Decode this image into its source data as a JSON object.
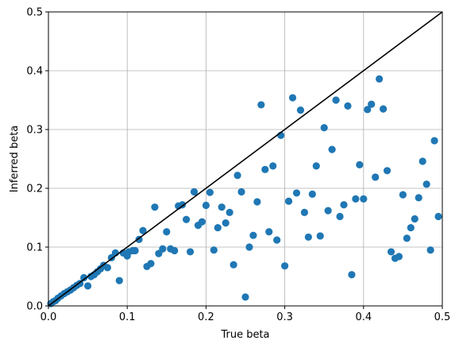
{
  "chart_data": {
    "type": "scatter",
    "title": "",
    "xlabel": "True beta",
    "ylabel": "Inferred beta",
    "xlim": [
      0,
      0.5
    ],
    "ylim": [
      0,
      0.5
    ],
    "grid": true,
    "xticks": [
      "0.0",
      "0.1",
      "0.2",
      "0.3",
      "0.4",
      "0.5"
    ],
    "yticks": [
      "0.0",
      "0.1",
      "0.2",
      "0.3",
      "0.4",
      "0.5"
    ],
    "marker_color": "#1f77b4",
    "reference_line": {
      "x": [
        0,
        0.5
      ],
      "y": [
        0,
        0.5
      ],
      "color": "#000000"
    },
    "points": [
      [
        0.003,
        0.004
      ],
      [
        0.006,
        0.007
      ],
      [
        0.009,
        0.009
      ],
      [
        0.012,
        0.013
      ],
      [
        0.016,
        0.017
      ],
      [
        0.02,
        0.021
      ],
      [
        0.024,
        0.024
      ],
      [
        0.028,
        0.027
      ],
      [
        0.032,
        0.031
      ],
      [
        0.036,
        0.035
      ],
      [
        0.04,
        0.038
      ],
      [
        0.045,
        0.048
      ],
      [
        0.05,
        0.034
      ],
      [
        0.054,
        0.05
      ],
      [
        0.058,
        0.053
      ],
      [
        0.062,
        0.058
      ],
      [
        0.066,
        0.063
      ],
      [
        0.07,
        0.069
      ],
      [
        0.075,
        0.065
      ],
      [
        0.08,
        0.082
      ],
      [
        0.085,
        0.09
      ],
      [
        0.09,
        0.043
      ],
      [
        0.095,
        0.09
      ],
      [
        0.1,
        0.085
      ],
      [
        0.102,
        0.092
      ],
      [
        0.107,
        0.094
      ],
      [
        0.11,
        0.094
      ],
      [
        0.115,
        0.113
      ],
      [
        0.12,
        0.128
      ],
      [
        0.125,
        0.067
      ],
      [
        0.13,
        0.072
      ],
      [
        0.135,
        0.168
      ],
      [
        0.14,
        0.089
      ],
      [
        0.145,
        0.097
      ],
      [
        0.15,
        0.126
      ],
      [
        0.155,
        0.097
      ],
      [
        0.16,
        0.094
      ],
      [
        0.165,
        0.17
      ],
      [
        0.17,
        0.172
      ],
      [
        0.175,
        0.147
      ],
      [
        0.18,
        0.092
      ],
      [
        0.185,
        0.194
      ],
      [
        0.19,
        0.137
      ],
      [
        0.195,
        0.143
      ],
      [
        0.2,
        0.171
      ],
      [
        0.205,
        0.193
      ],
      [
        0.21,
        0.095
      ],
      [
        0.215,
        0.133
      ],
      [
        0.22,
        0.168
      ],
      [
        0.225,
        0.141
      ],
      [
        0.23,
        0.159
      ],
      [
        0.235,
        0.07
      ],
      [
        0.24,
        0.222
      ],
      [
        0.245,
        0.194
      ],
      [
        0.25,
        0.015
      ],
      [
        0.255,
        0.1
      ],
      [
        0.26,
        0.12
      ],
      [
        0.265,
        0.177
      ],
      [
        0.27,
        0.342
      ],
      [
        0.275,
        0.232
      ],
      [
        0.28,
        0.126
      ],
      [
        0.285,
        0.238
      ],
      [
        0.29,
        0.112
      ],
      [
        0.295,
        0.29
      ],
      [
        0.3,
        0.068
      ],
      [
        0.305,
        0.178
      ],
      [
        0.31,
        0.354
      ],
      [
        0.315,
        0.192
      ],
      [
        0.32,
        0.333
      ],
      [
        0.325,
        0.159
      ],
      [
        0.33,
        0.117
      ],
      [
        0.335,
        0.19
      ],
      [
        0.34,
        0.238
      ],
      [
        0.345,
        0.119
      ],
      [
        0.35,
        0.303
      ],
      [
        0.355,
        0.162
      ],
      [
        0.36,
        0.266
      ],
      [
        0.365,
        0.35
      ],
      [
        0.37,
        0.152
      ],
      [
        0.375,
        0.172
      ],
      [
        0.38,
        0.34
      ],
      [
        0.385,
        0.053
      ],
      [
        0.39,
        0.182
      ],
      [
        0.395,
        0.24
      ],
      [
        0.4,
        0.182
      ],
      [
        0.405,
        0.334
      ],
      [
        0.41,
        0.343
      ],
      [
        0.415,
        0.219
      ],
      [
        0.42,
        0.386
      ],
      [
        0.425,
        0.335
      ],
      [
        0.43,
        0.23
      ],
      [
        0.435,
        0.092
      ],
      [
        0.44,
        0.081
      ],
      [
        0.445,
        0.084
      ],
      [
        0.45,
        0.189
      ],
      [
        0.455,
        0.115
      ],
      [
        0.46,
        0.133
      ],
      [
        0.465,
        0.148
      ],
      [
        0.47,
        0.184
      ],
      [
        0.475,
        0.246
      ],
      [
        0.48,
        0.207
      ],
      [
        0.485,
        0.095
      ],
      [
        0.49,
        0.281
      ],
      [
        0.495,
        0.152
      ]
    ]
  }
}
